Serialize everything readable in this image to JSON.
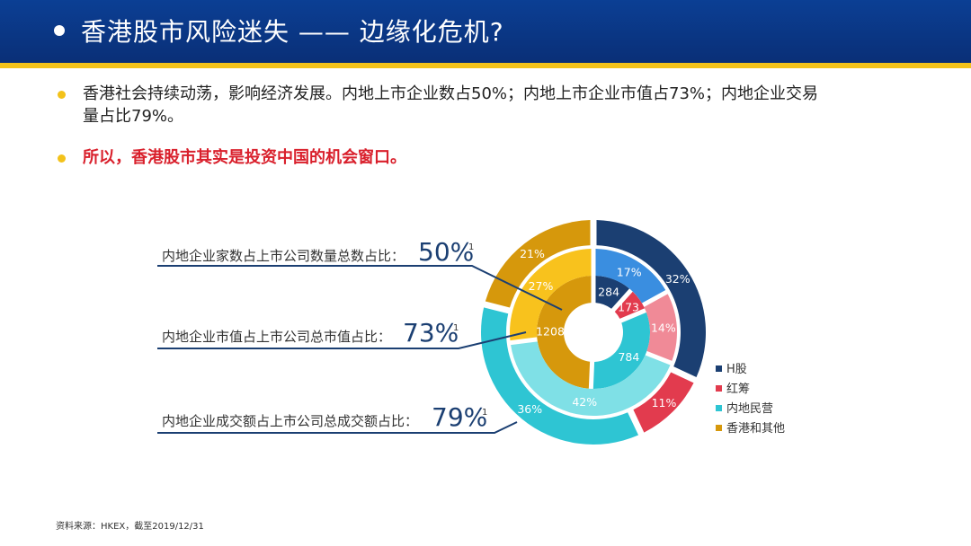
{
  "header": {
    "title": "香港股市风险迷失 —— 边缘化危机?"
  },
  "bullets": [
    {
      "line1": "香港社会持续动荡，影响经济发展。内地上市企业数占50%；内地上市企业市值占73%；内地企业交易",
      "line2": "量占比79%。"
    },
    {
      "line1": "所以，香港股市其实是投资中国的机会窗口。"
    }
  ],
  "callouts": [
    {
      "label": "内地企业家数占上市公司数量总数占比：",
      "value": "50%",
      "note": "1"
    },
    {
      "label": "内地企业市值占上市公司总市值占比：",
      "value": "73%",
      "note": "1"
    },
    {
      "label": "内地企业成交额占上市公司总成交额占比：",
      "value": "79%",
      "note": "1"
    }
  ],
  "colors": {
    "h_share": "#1b3f72",
    "red_chip": "#e23b4e",
    "mainland_private": "#2ec5d3",
    "hk_other": "#d6980c"
  },
  "legend": [
    "H股",
    "红筹",
    "内地民营",
    "香港和其他"
  ],
  "chart_data": {
    "type": "pie",
    "subtype": "nested-donut",
    "categories": [
      "H股",
      "红筹",
      "内地民营",
      "香港和其他"
    ],
    "rings": [
      {
        "level": "inner",
        "values": [
          284,
          173,
          784,
          1208
        ],
        "labels": [
          "284",
          "173",
          "784",
          "1208"
        ]
      },
      {
        "level": "middle",
        "values": [
          17,
          14,
          42,
          27
        ],
        "labels": [
          "17%",
          "14%",
          "42%",
          "27%"
        ]
      },
      {
        "level": "outer",
        "values": [
          32,
          11,
          36,
          21
        ],
        "labels": [
          "32%",
          "11%",
          "36%",
          "21%"
        ]
      }
    ],
    "ring_colors": {
      "inner": [
        "#1b3f72",
        "#e23b4e",
        "#2ec5d3",
        "#d6980c"
      ],
      "middle": [
        "#3a8ee0",
        "#f08a97",
        "#7fe0e6",
        "#f8c21d"
      ],
      "outer": [
        "#1b3f72",
        "#e23b4e",
        "#2ec5d3",
        "#d6980c"
      ]
    },
    "legend_position": "right"
  },
  "footer": {
    "source": "资料来源：HKEX，截至2019/12/31"
  }
}
